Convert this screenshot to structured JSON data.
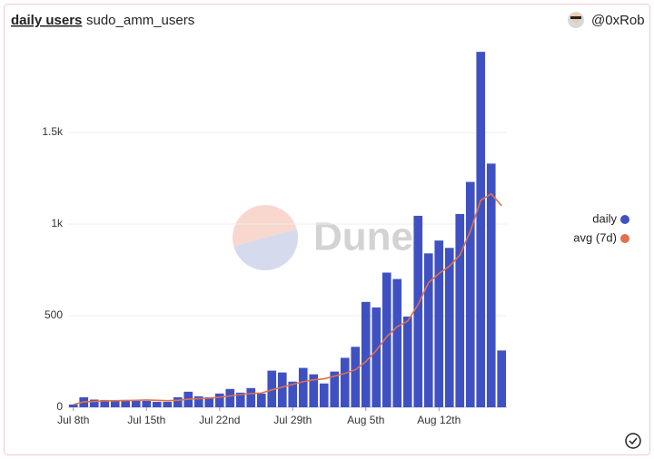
{
  "header": {
    "tabs": [
      "daily users",
      "sudo_amm_users"
    ],
    "user": "@0xRob"
  },
  "watermark": "Dune",
  "chart_data": {
    "type": "bar",
    "categories": [
      "Jul 8th",
      null,
      null,
      null,
      null,
      null,
      null,
      "Jul 15th",
      null,
      null,
      null,
      null,
      null,
      null,
      "Jul 22nd",
      null,
      null,
      null,
      null,
      null,
      null,
      "Jul 29th",
      null,
      null,
      null,
      null,
      null,
      null,
      "Aug 5th",
      null,
      null,
      null,
      null,
      null,
      null,
      "Aug 12th",
      null,
      null,
      null,
      null,
      null,
      null
    ],
    "series": [
      {
        "name": "daily",
        "color": "#3f51c2",
        "type": "bar",
        "values": [
          15,
          55,
          42,
          40,
          35,
          40,
          40,
          35,
          30,
          30,
          55,
          85,
          60,
          55,
          75,
          100,
          80,
          105,
          75,
          200,
          190,
          140,
          215,
          180,
          130,
          195,
          270,
          330,
          575,
          545,
          735,
          700,
          495,
          1045,
          840,
          910,
          870,
          1055,
          1230,
          1940,
          1330,
          310
        ]
      },
      {
        "name": "avg (7d)",
        "color": "#e0714a",
        "type": "line",
        "values": [
          15,
          30,
          32,
          35,
          36,
          37,
          38,
          40,
          38,
          36,
          38,
          44,
          47,
          50,
          55,
          62,
          70,
          75,
          78,
          95,
          110,
          125,
          140,
          150,
          155,
          170,
          185,
          205,
          250,
          310,
          385,
          440,
          470,
          560,
          680,
          730,
          770,
          830,
          960,
          1130,
          1165,
          1100
        ]
      }
    ],
    "ylim": [
      0,
      2000
    ],
    "yticks": [
      0,
      500,
      {
        "value": 1000,
        "label": "1k"
      },
      {
        "value": 1500,
        "label": "1.5k"
      }
    ],
    "grid": true,
    "legend": "right"
  }
}
